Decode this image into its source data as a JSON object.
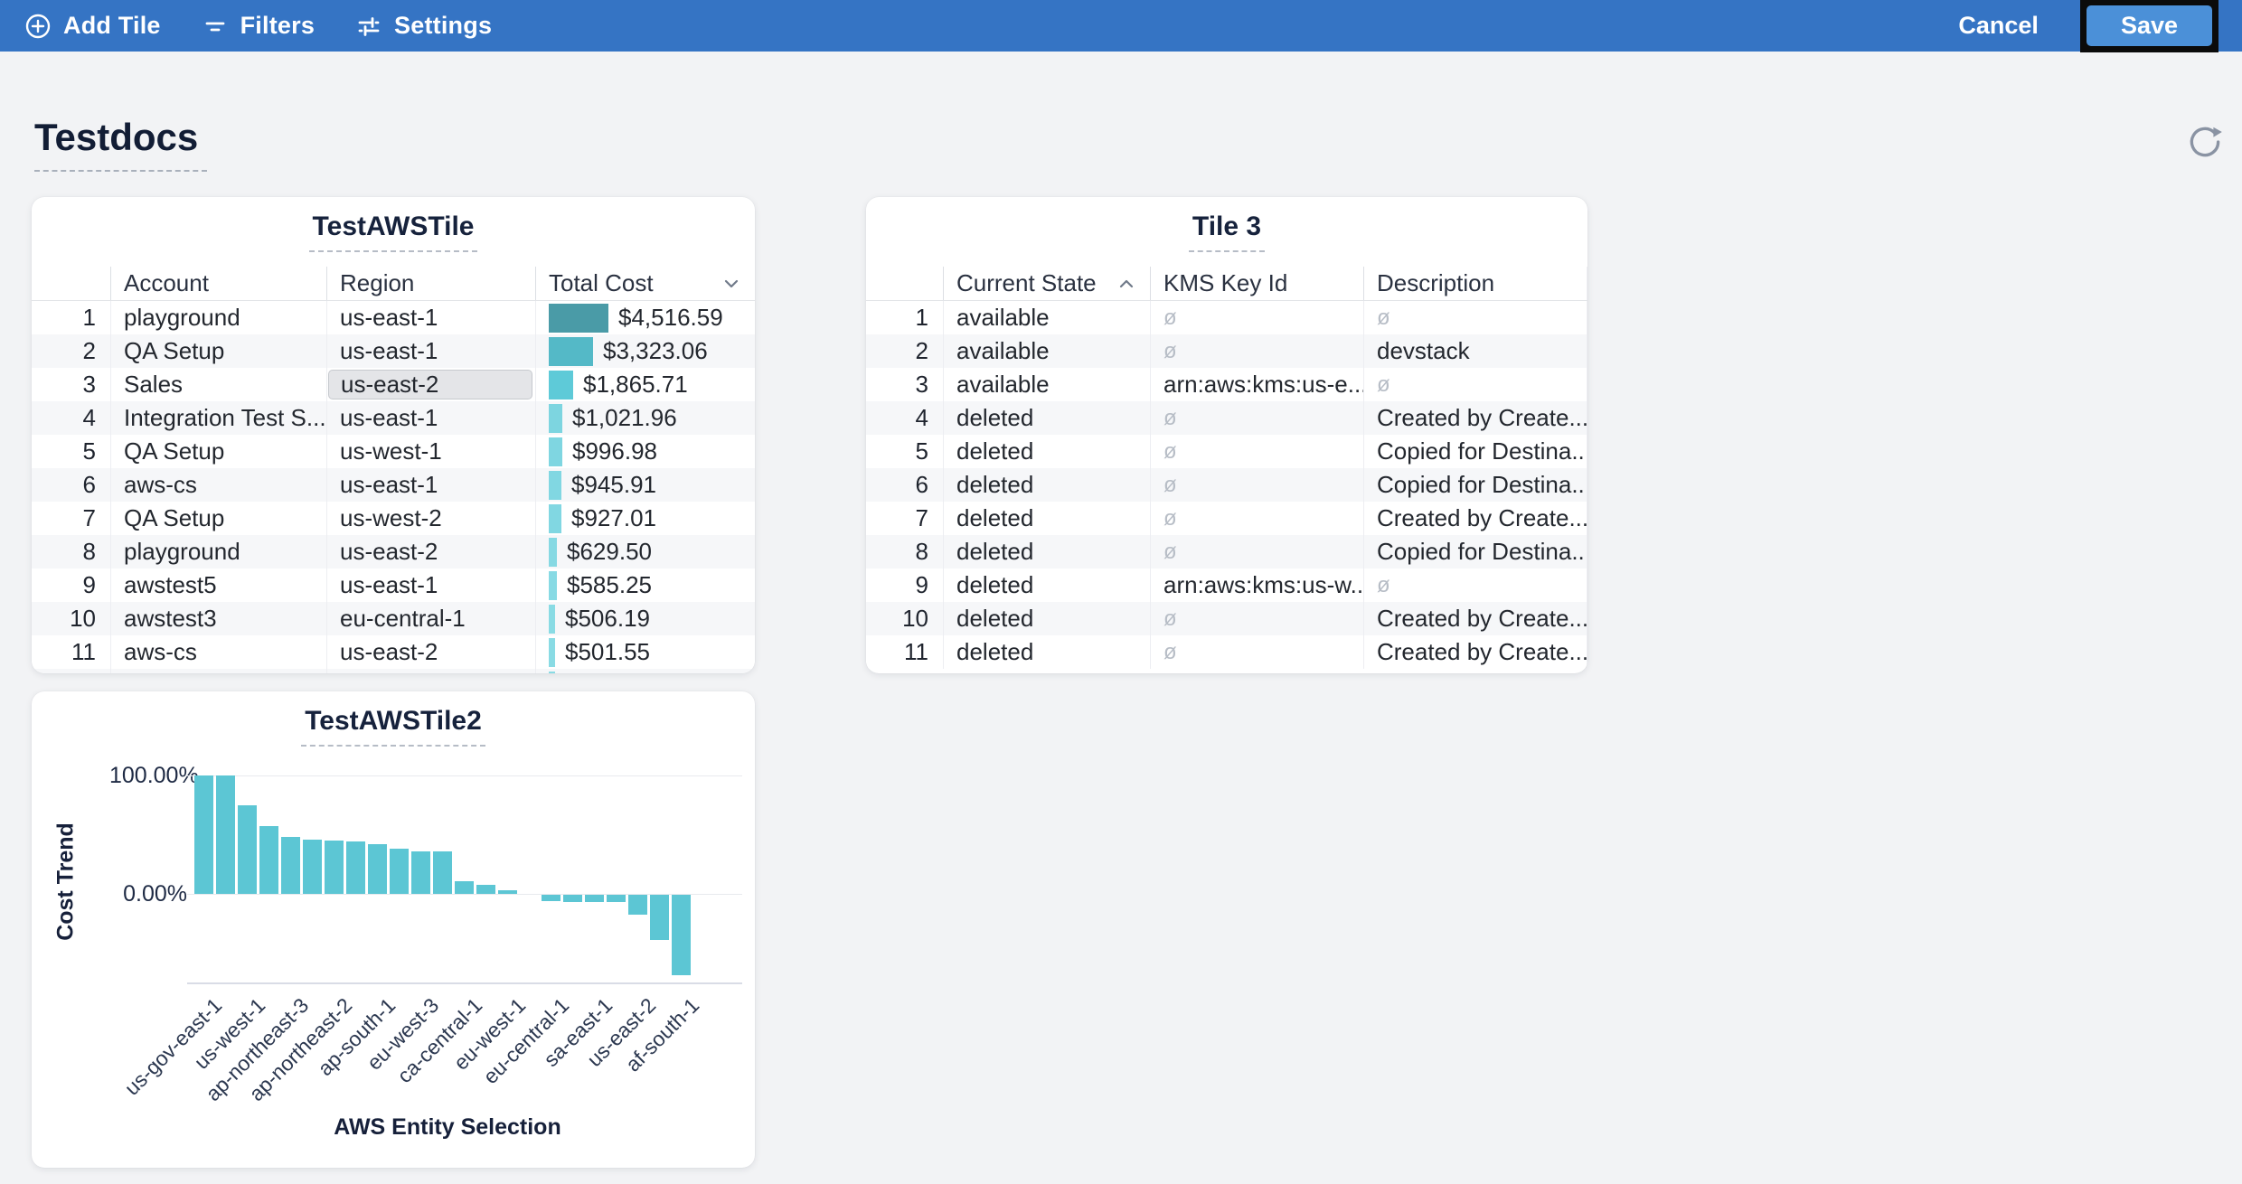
{
  "toolbar": {
    "add_tile": "Add Tile",
    "filters": "Filters",
    "settings": "Settings",
    "cancel": "Cancel",
    "save": "Save"
  },
  "page": {
    "title": "Testdocs"
  },
  "icons": {
    "add_tile": "plus-circle-icon",
    "filters": "filter-lines-icon",
    "settings": "sliders-icon",
    "refresh": "refresh-arrow-icon",
    "sort_desc": "chevron-down-icon",
    "sort_asc": "chevron-up-icon"
  },
  "colors": {
    "toolbar_bg": "#3574c4",
    "save_button_bg": "#4b90d8",
    "page_bg": "#f2f3f5",
    "tile_bg": "#ffffff",
    "chart_bar": "#5cc6d4",
    "selected_cell_bg": "#e4e5e8",
    "null_text": "#b7bdc6"
  },
  "tiles": {
    "tile1": {
      "title": "TestAWSTile",
      "columns": [
        {
          "label": "Account"
        },
        {
          "label": "Region"
        },
        {
          "label": "Total Cost",
          "sort": "desc"
        }
      ],
      "max_value": 4516.59,
      "rows": [
        {
          "n": "1",
          "account": "playground",
          "region": "us-east-1",
          "cost": "$4,516.59",
          "value": 4516.59,
          "bar_color": "#4a9ba7"
        },
        {
          "n": "2",
          "account": "QA Setup",
          "region": "us-east-1",
          "cost": "$3,323.06",
          "value": 3323.06,
          "bar_color": "#54b9c7"
        },
        {
          "n": "3",
          "account": "Sales",
          "region": "us-east-2",
          "cost": "$1,865.71",
          "value": 1865.71,
          "bar_color": "#5ecad8",
          "region_selected": true
        },
        {
          "n": "4",
          "account": "Integration Test S...",
          "region": "us-east-1",
          "cost": "$1,021.96",
          "value": 1021.96,
          "bar_color": "#7dd5e0"
        },
        {
          "n": "5",
          "account": "QA Setup",
          "region": "us-west-1",
          "cost": "$996.98",
          "value": 996.98,
          "bar_color": "#7fd6e1"
        },
        {
          "n": "6",
          "account": "aws-cs",
          "region": "us-east-1",
          "cost": "$945.91",
          "value": 945.91,
          "bar_color": "#81d7e2"
        },
        {
          "n": "7",
          "account": "QA Setup",
          "region": "us-west-2",
          "cost": "$927.01",
          "value": 927.01,
          "bar_color": "#81d7e2"
        },
        {
          "n": "8",
          "account": "playground",
          "region": "us-east-2",
          "cost": "$629.50",
          "value": 629.5,
          "bar_color": "#86d9e3"
        },
        {
          "n": "9",
          "account": "awstest5",
          "region": "us-east-1",
          "cost": "$585.25",
          "value": 585.25,
          "bar_color": "#87dae4"
        },
        {
          "n": "10",
          "account": "awstest3",
          "region": "eu-central-1",
          "cost": "$506.19",
          "value": 506.19,
          "bar_color": "#89dbe4"
        },
        {
          "n": "11",
          "account": "aws-cs",
          "region": "us-east-2",
          "cost": "$501.55",
          "value": 501.55,
          "bar_color": "#89dbe4"
        }
      ],
      "partial_row": {
        "value": 470,
        "bar_color": "#89dbe4"
      }
    },
    "tile3": {
      "title": "Tile 3",
      "columns": [
        {
          "label": "Current State",
          "sort": "asc"
        },
        {
          "label": "KMS Key Id"
        },
        {
          "label": "Description"
        }
      ],
      "null_symbol": "ø",
      "rows": [
        {
          "n": "1",
          "state": "available",
          "kms": null,
          "desc": null
        },
        {
          "n": "2",
          "state": "available",
          "kms": null,
          "desc": "devstack"
        },
        {
          "n": "3",
          "state": "available",
          "kms": "arn:aws:kms:us-e...",
          "desc": null
        },
        {
          "n": "4",
          "state": "deleted",
          "kms": null,
          "desc": "Created by Create..."
        },
        {
          "n": "5",
          "state": "deleted",
          "kms": null,
          "desc": "Copied for Destina..."
        },
        {
          "n": "6",
          "state": "deleted",
          "kms": null,
          "desc": "Copied for Destina..."
        },
        {
          "n": "7",
          "state": "deleted",
          "kms": null,
          "desc": "Created by Create..."
        },
        {
          "n": "8",
          "state": "deleted",
          "kms": null,
          "desc": "Copied for Destina..."
        },
        {
          "n": "9",
          "state": "deleted",
          "kms": "arn:aws:kms:us-w...",
          "desc": null
        },
        {
          "n": "10",
          "state": "deleted",
          "kms": null,
          "desc": "Created by Create..."
        },
        {
          "n": "11",
          "state": "deleted",
          "kms": null,
          "desc": "Created by Create..."
        }
      ]
    }
  },
  "chart_data": {
    "type": "bar",
    "title": "TestAWSTile2",
    "xlabel": "AWS Entity Selection",
    "ylabel": "Cost Trend",
    "ytick_labels": [
      "100.00%",
      "0.00%"
    ],
    "ylim": [
      -75,
      100
    ],
    "grid": "horizontal at 0% and 100%",
    "legend": "none",
    "bar_color": "#5cc6d4",
    "label_every": 2,
    "tick_labels": [
      "us-gov-east-1",
      "us-west-1",
      "ap-northeast-3",
      "ap-northeast-2",
      "ap-south-1",
      "eu-west-3",
      "ca-central-1",
      "eu-west-1",
      "eu-central-1",
      "sa-east-1",
      "us-east-2",
      "af-south-1"
    ],
    "values_pct": [
      100,
      100,
      75,
      57,
      48,
      46,
      45,
      44,
      42,
      38,
      36,
      36,
      11,
      8,
      3,
      0,
      -5,
      -6,
      -6,
      -6,
      -17,
      -38,
      -68
    ]
  }
}
